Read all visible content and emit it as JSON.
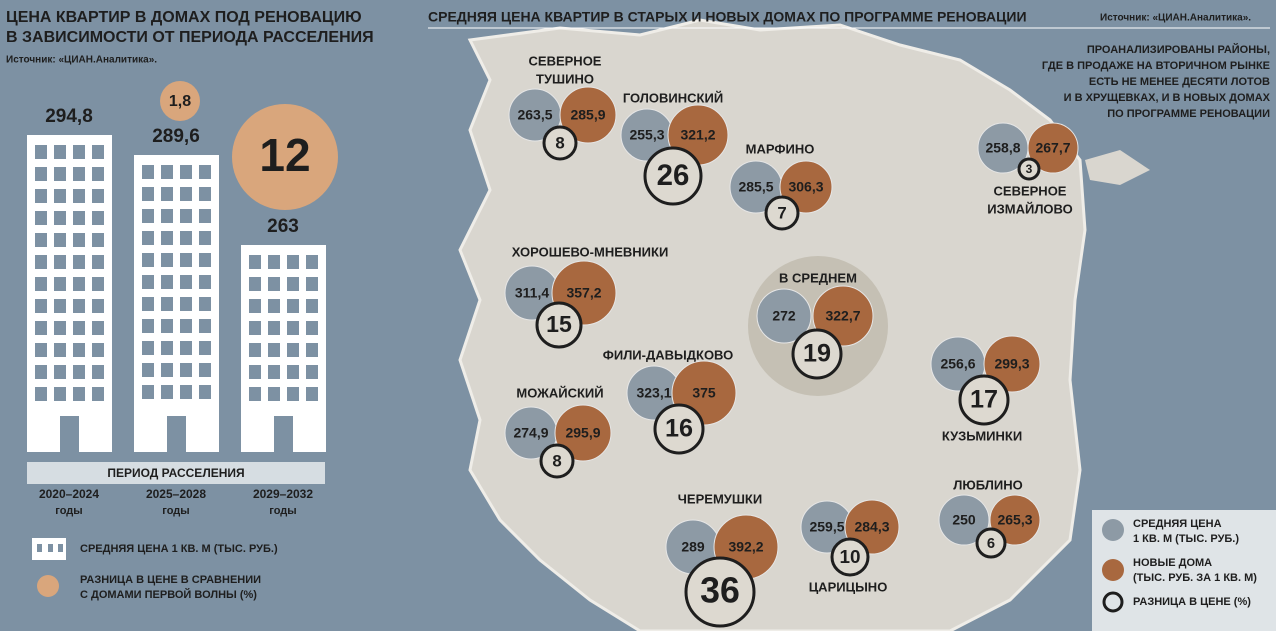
{
  "left": {
    "title": [
      "ЦЕНА КВАРТИР В ДОМАХ ПОД РЕНОВАЦИЮ",
      "В ЗАВИСИМОСТИ ОТ ПЕРИОДА РАССЕЛЕНИЯ"
    ],
    "source": "Источник: «ЦИАН.Аналитика».",
    "periods": [
      {
        "price": "294,8",
        "years": "2020–2024",
        "unit": "годы"
      },
      {
        "price": "289,6",
        "diff": "1,8",
        "years": "2025–2028",
        "unit": "годы"
      },
      {
        "price": "263",
        "diff": "12",
        "years": "2029–2032",
        "unit": "годы"
      }
    ],
    "axis_label": "ПЕРИОД РАССЕЛЕНИЯ",
    "legend": [
      {
        "text": [
          "СРЕДНЯЯ ЦЕНА 1 КВ. М (ТЫС. РУБ.)"
        ]
      },
      {
        "text": [
          "РАЗНИЦА В ЦЕНЕ В СРАВНЕНИИ",
          "С ДОМАМИ ПЕРВОЙ ВОЛНЫ (%)"
        ]
      }
    ]
  },
  "right": {
    "title": "СРЕДНЯЯ ЦЕНА КВАРТИР В СТАРЫХ И НОВЫХ ДОМАХ ПО ПРОГРАММЕ РЕНОВАЦИИ",
    "source": "Источник: «ЦИАН.Аналитика».",
    "note": [
      "ПРОАНАЛИЗИРОВАНЫ РАЙОНЫ,",
      "ГДЕ В ПРОДАЖЕ НА ВТОРИЧНОМ РЫНКЕ",
      "ЕСТЬ НЕ МЕНЕЕ ДЕСЯТИ ЛОТОВ",
      "И В ХРУЩЕВКАХ, И В НОВЫХ ДОМАХ",
      "ПО ПРОГРАММЕ  РЕНОВАЦИИ"
    ],
    "districts": [
      {
        "name": [
          "СЕВЕРНОЕ",
          "ТУШИНО"
        ],
        "old": "263,5",
        "new": "285,9",
        "diff": "8"
      },
      {
        "name": [
          "ГОЛОВИНСКИЙ"
        ],
        "old": "255,3",
        "new": "321,2",
        "diff": "26"
      },
      {
        "name": [
          "МАРФИНО"
        ],
        "old": "285,5",
        "new": "306,3",
        "diff": "7"
      },
      {
        "name": [
          "СЕВЕРНОЕ",
          "ИЗМАЙЛОВО"
        ],
        "old": "258,8",
        "new": "267,7",
        "diff": "3"
      },
      {
        "name": [
          "ХОРОШЕВО-МНЕВНИКИ"
        ],
        "old": "311,4",
        "new": "357,2",
        "diff": "15"
      },
      {
        "name": [
          "В СРЕДНЕМ"
        ],
        "old": "272",
        "new": "322,7",
        "diff": "19"
      },
      {
        "name": [
          "ФИЛИ-ДАВЫДКОВО"
        ],
        "old": "323,1",
        "new": "375",
        "diff": "16"
      },
      {
        "name": [
          "МОЖАЙСКИЙ"
        ],
        "old": "274,9",
        "new": "295,9",
        "diff": "8"
      },
      {
        "name": [
          "КУЗЬМИНКИ"
        ],
        "old": "256,6",
        "new": "299,3",
        "diff": "17"
      },
      {
        "name": [
          "ЧЕРЕМУШКИ"
        ],
        "old": "289",
        "new": "392,2",
        "diff": "36"
      },
      {
        "name": [
          "ЦАРИЦЫНО"
        ],
        "old": "259,5",
        "new": "284,3",
        "diff": "10"
      },
      {
        "name": [
          "ЛЮБЛИНО"
        ],
        "old": "250",
        "new": "265,3",
        "diff": "6"
      }
    ],
    "legend": [
      {
        "text": [
          "СРЕДНЯЯ ЦЕНА",
          "1 КВ. М (ТЫС. РУБ.)"
        ]
      },
      {
        "text": [
          "НОВЫЕ ДОМА",
          "(ТЫС. РУБ. ЗА 1 КВ. М)"
        ]
      },
      {
        "text": [
          "РАЗНИЦА В ЦЕНЕ (%)"
        ]
      }
    ]
  }
}
